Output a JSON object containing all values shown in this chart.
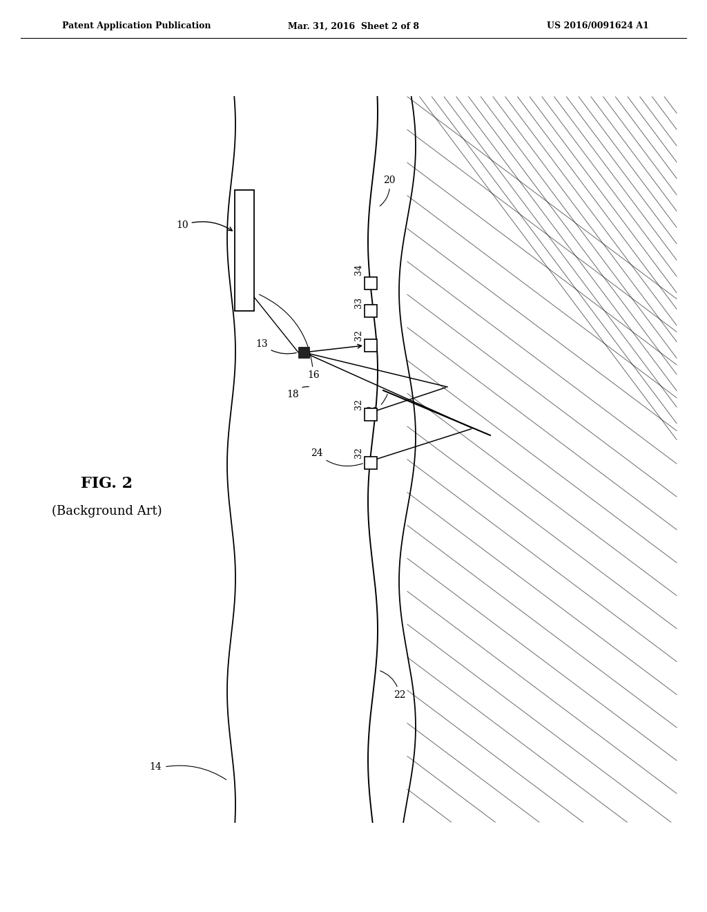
{
  "bg_color": "#ffffff",
  "line_color": "#000000",
  "header_left": "Patent Application Publication",
  "header_center": "Mar. 31, 2016  Sheet 2 of 8",
  "header_right": "US 2016/0091624 A1",
  "fig_label": "FIG. 2",
  "fig_sublabel": "(Background Art)"
}
